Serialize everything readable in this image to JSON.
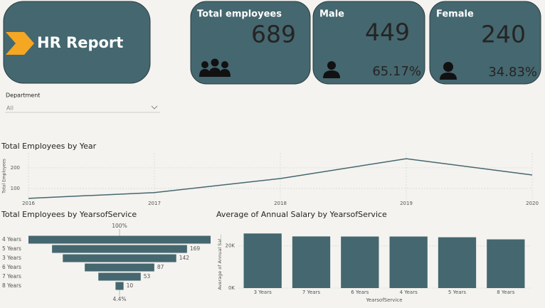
{
  "header": {
    "title": "HR Report"
  },
  "cards": [
    {
      "title": "Total employees",
      "value": 689
    },
    {
      "title": "Male",
      "value": 449,
      "share": "65.17%"
    },
    {
      "title": "Female",
      "value": 240,
      "share": "34.83%"
    }
  ],
  "filter": {
    "label": "Department",
    "value": "All"
  },
  "chart_data": [
    {
      "type": "line",
      "title": "Total Employees by Year",
      "y_label": "Total Employees",
      "x": [
        2016,
        2017,
        2018,
        2019,
        2020
      ],
      "xlim": [
        2016,
        2020
      ],
      "xticks": [
        2016,
        2017,
        2018,
        2019,
        2020
      ],
      "series": [
        {
          "name": "Total Employees",
          "color": "#45676f",
          "values": [
            52,
            80,
            148,
            244,
            165
          ]
        }
      ],
      "ylim": [
        48,
        272
      ],
      "yticks": [
        100,
        200
      ],
      "grid": true
    },
    {
      "type": "funnel",
      "title": "Total Employees by YearsofService",
      "categories": [
        "4 Years",
        "5 Years",
        "3 Years",
        "6 Years",
        "7 Years",
        "8 Years"
      ],
      "values": [
        228,
        169,
        142,
        87,
        53,
        10
      ],
      "value_labels": [
        null,
        "169",
        "142",
        "87",
        "53",
        "10"
      ],
      "top_label": "100%",
      "bottom_label": "4.4%",
      "color": "#45676f"
    },
    {
      "type": "bar",
      "title": "Average of Annual Salary by YearsofService",
      "x_label": "YearsofService",
      "y_label": "Average of Annual Sal...",
      "categories": [
        "3 Years",
        "7 Years",
        "6 Years",
        "4 Years",
        "5 Years",
        "8 Years"
      ],
      "values": [
        25900,
        24500,
        24450,
        24450,
        24100,
        23100
      ],
      "color": "#45676f",
      "ylim": [
        0,
        28000
      ],
      "yticks": [
        {
          "value": 0,
          "label": "0K"
        },
        {
          "value": 20000,
          "label": "20K"
        }
      ],
      "grid": true
    }
  ]
}
